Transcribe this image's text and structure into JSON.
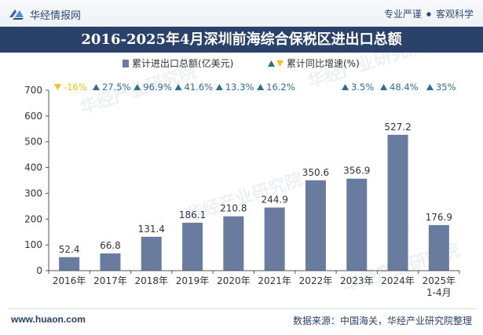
{
  "header": {
    "brand": "华经情报网",
    "slogan_left": "专业严谨",
    "slogan_separator": "●",
    "slogan_right": "客观科学"
  },
  "footer": {
    "url": "www.huaon.com",
    "source": "数据来源：中国海关，华经产业研究院整理"
  },
  "colors": {
    "bar": "#6a7ba0",
    "up": "#2f6f8f",
    "down": "#f2c21b",
    "title_bg": "#2a4169",
    "axis": "#555555"
  },
  "chart_data": {
    "type": "bar",
    "title": "2016-2025年4月深圳前海综合保税区进出口总额",
    "xlabel": "",
    "ylabel": "",
    "ylim": [
      0,
      700
    ],
    "yticks": [
      0,
      100,
      200,
      300,
      400,
      500,
      600,
      700
    ],
    "categories": [
      "2016年",
      "2017年",
      "2018年",
      "2019年",
      "2020年",
      "2021年",
      "2022年",
      "2023年",
      "2024年",
      "2025年\n1-4月"
    ],
    "series": [
      {
        "name": "累计进出口总额(亿美元)",
        "values": [
          52.4,
          66.8,
          131.4,
          186.1,
          210.8,
          244.9,
          350.6,
          356.9,
          527.2,
          176.9
        ],
        "labels": [
          "52.4",
          "66.8",
          "131.4",
          "186.1",
          "210.8",
          "244.9",
          "350.6",
          "356.9",
          "527.2",
          "176.9"
        ]
      }
    ],
    "growth": {
      "name": "累计同比增速(%)",
      "values": [
        -16,
        27.5,
        96.9,
        41.6,
        13.3,
        16.2,
        null,
        3.5,
        48.4,
        35
      ],
      "labels": [
        "-16%",
        "27.5%",
        "96.9%",
        "41.6%",
        "13.3%",
        "16.2%",
        "",
        "3.5%",
        "48.4%",
        "35%"
      ]
    },
    "legend": {
      "bar_label": "累计进出口总额(亿美元)",
      "growth_label": "累计同比增速(%)",
      "position": "top-center"
    }
  }
}
